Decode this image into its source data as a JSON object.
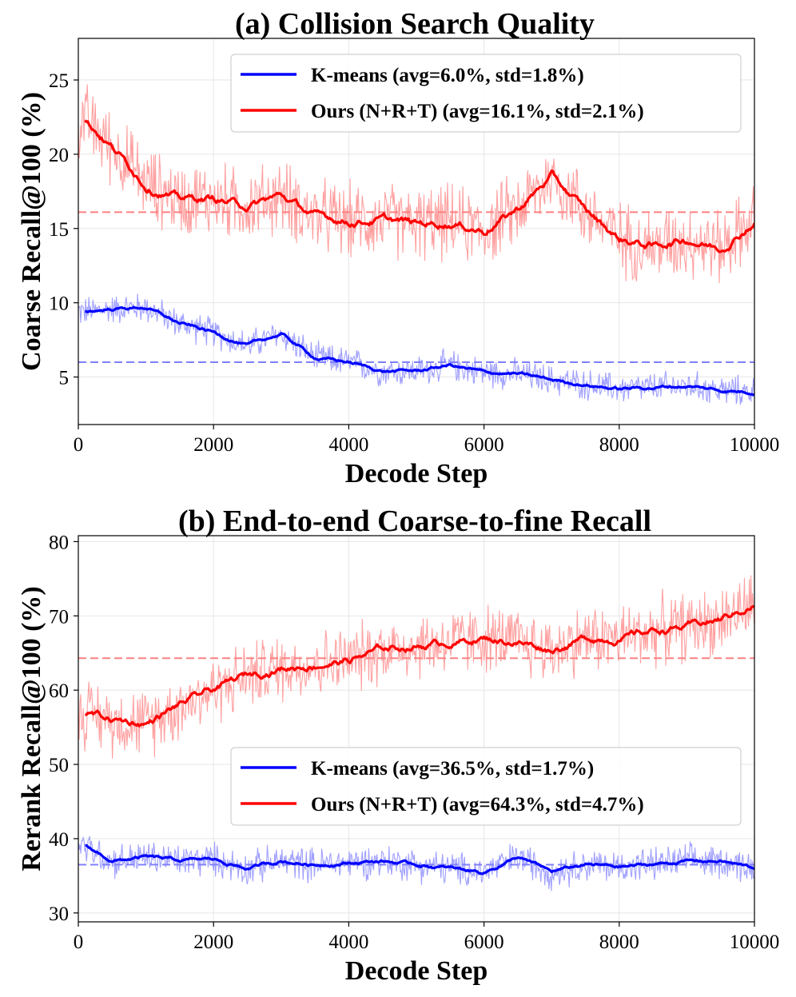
{
  "chart_data": [
    {
      "type": "line",
      "title": "(a) Collision Search Quality",
      "xlabel": "Decode Step",
      "ylabel": "Coarse Recall@100 (%)",
      "xlim": [
        0,
        10000
      ],
      "ylim": [
        1.8,
        27.8
      ],
      "xticks": [
        0,
        2000,
        4000,
        6000,
        8000,
        10000
      ],
      "xtick_labels": [
        "0",
        "2000",
        "4000",
        "6000",
        "8000",
        "10000"
      ],
      "yticks": [
        5,
        10,
        15,
        20,
        25
      ],
      "ytick_labels": [
        "5",
        "10",
        "15",
        "20",
        "25"
      ],
      "grid": true,
      "legend_position": "top-right",
      "x": [
        100,
        500,
        1000,
        1500,
        2000,
        2500,
        3000,
        3500,
        4000,
        4500,
        5000,
        5500,
        6000,
        6500,
        7000,
        7500,
        8000,
        8500,
        9000,
        9500,
        10000
      ],
      "series": [
        {
          "name": "K-means",
          "legend_label": "K-means (avg=6.0%, std=1.8%)",
          "color": "#0000ff",
          "raw_color": "#8080ff",
          "avg": 6.0,
          "values": [
            9.4,
            9.6,
            9.7,
            8.6,
            8.0,
            7.1,
            7.9,
            6.3,
            6.0,
            5.4,
            5.4,
            5.8,
            5.3,
            5.2,
            4.8,
            4.5,
            4.2,
            4.3,
            4.4,
            4.1,
            4.0
          ]
        },
        {
          "name": "Ours (N+R+T)",
          "legend_label": "Ours (N+R+T) (avg=16.1%, std=2.1%)",
          "color": "#ff0000",
          "raw_color": "#ff8080",
          "avg": 16.1,
          "values": [
            22.3,
            20.5,
            18.0,
            17.0,
            17.0,
            16.5,
            17.2,
            15.8,
            15.5,
            15.6,
            15.3,
            15.4,
            14.9,
            16.3,
            18.5,
            16.2,
            14.3,
            13.8,
            14.3,
            13.7,
            15.5
          ]
        }
      ]
    },
    {
      "type": "line",
      "title": "(b) End-to-end Coarse-to-fine Recall",
      "xlabel": "Decode Step",
      "ylabel": "Rerank Recall@100 (%)",
      "xlim": [
        0,
        10000
      ],
      "ylim": [
        28.8,
        80.8
      ],
      "xticks": [
        0,
        2000,
        4000,
        6000,
        8000,
        10000
      ],
      "xtick_labels": [
        "0",
        "2000",
        "4000",
        "6000",
        "8000",
        "10000"
      ],
      "yticks": [
        30,
        40,
        50,
        60,
        70,
        80
      ],
      "ytick_labels": [
        "30",
        "40",
        "50",
        "60",
        "70",
        "80"
      ],
      "grid": true,
      "legend_position": "center-right",
      "x": [
        100,
        500,
        1000,
        1500,
        2000,
        2500,
        3000,
        3500,
        4000,
        4500,
        5000,
        5500,
        6000,
        6500,
        7000,
        7500,
        8000,
        8500,
        9000,
        9500,
        10000
      ],
      "series": [
        {
          "name": "K-means",
          "legend_label": "K-means (avg=36.5%, std=1.7%)",
          "color": "#0000ff",
          "raw_color": "#8080ff",
          "avg": 36.5,
          "values": [
            39.0,
            37.0,
            37.5,
            37.0,
            37.2,
            36.0,
            37.0,
            36.5,
            36.8,
            37.0,
            36.5,
            36.0,
            35.5,
            37.5,
            35.5,
            36.5,
            36.2,
            36.5,
            37.0,
            37.0,
            36.0
          ]
        },
        {
          "name": "Ours (N+R+T)",
          "legend_label": "Ours (N+R+T) (avg=64.3%, std=4.7%)",
          "color": "#ff0000",
          "raw_color": "#ff8080",
          "avg": 64.3,
          "values": [
            57.0,
            56.0,
            55.5,
            58.0,
            60.0,
            62.0,
            63.0,
            63.5,
            64.0,
            65.5,
            66.0,
            66.5,
            67.0,
            66.5,
            65.5,
            67.0,
            67.0,
            68.0,
            68.5,
            69.5,
            71.5
          ]
        }
      ]
    }
  ]
}
